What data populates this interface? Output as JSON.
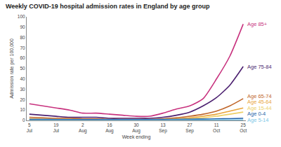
{
  "chart_data": {
    "type": "line",
    "title": "Weekly COVID-19 hospital admission rates in England by age group",
    "x_label": "Week ending",
    "y_label": "Admission rate per 100,000",
    "categories": [
      "5 Jul",
      null,
      "19 Jul",
      null,
      "2 Aug",
      null,
      "16 Aug",
      null,
      "30 Aug",
      null,
      "13 Sep",
      null,
      "27 Sep",
      null,
      "11 Oct",
      null,
      "25 Oct"
    ],
    "series": [
      {
        "name": "Age 85+",
        "color": "#c8327e",
        "values": [
          16,
          14,
          12,
          10,
          7,
          7,
          6,
          5,
          4,
          4,
          7,
          11,
          14,
          21,
          40,
          62,
          93
        ]
      },
      {
        "name": "Age 75-84",
        "color": "#4b1f6f",
        "values": [
          6,
          5,
          4,
          3,
          3,
          3,
          2,
          2,
          2,
          2,
          3,
          5,
          8,
          14,
          22,
          34,
          52
        ]
      },
      {
        "name": "Age 65-74",
        "color": "#c0662a",
        "values": [
          3,
          2.5,
          2,
          2,
          1.5,
          1.5,
          1,
          1,
          1,
          1,
          1.5,
          2.5,
          4,
          6,
          9,
          14,
          21
        ]
      },
      {
        "name": "Age 45-64",
        "color": "#e8a53a",
        "values": [
          1.5,
          1.2,
          1,
          1,
          0.8,
          0.8,
          0.7,
          0.7,
          0.7,
          0.7,
          1,
          1.5,
          2.5,
          4,
          6,
          9,
          12
        ]
      },
      {
        "name": "Age 15-44",
        "color": "#ecd068",
        "values": [
          1,
          0.8,
          0.7,
          0.6,
          0.6,
          0.6,
          0.5,
          0.5,
          0.5,
          0.5,
          0.7,
          1,
          1.5,
          2.5,
          4,
          6,
          8
        ]
      },
      {
        "name": "Age 0-4",
        "color": "#1f5fa8",
        "values": [
          1,
          1,
          0.8,
          0.8,
          0.8,
          0.8,
          0.8,
          0.8,
          0.8,
          0.8,
          0.9,
          1,
          1.2,
          1.3,
          1.5,
          1.7,
          2
        ]
      },
      {
        "name": "Age 5-14",
        "color": "#7cc6e6",
        "values": [
          0.2,
          0.2,
          0.2,
          0.2,
          0.2,
          0.2,
          0.2,
          0.2,
          0.2,
          0.2,
          0.2,
          0.3,
          0.3,
          0.3,
          0.4,
          0.4,
          0.5
        ]
      }
    ],
    "ylim": [
      0,
      100
    ],
    "yticks": [
      0,
      10,
      20,
      30,
      40,
      50,
      60,
      70,
      80,
      90,
      100
    ],
    "grid": false
  }
}
